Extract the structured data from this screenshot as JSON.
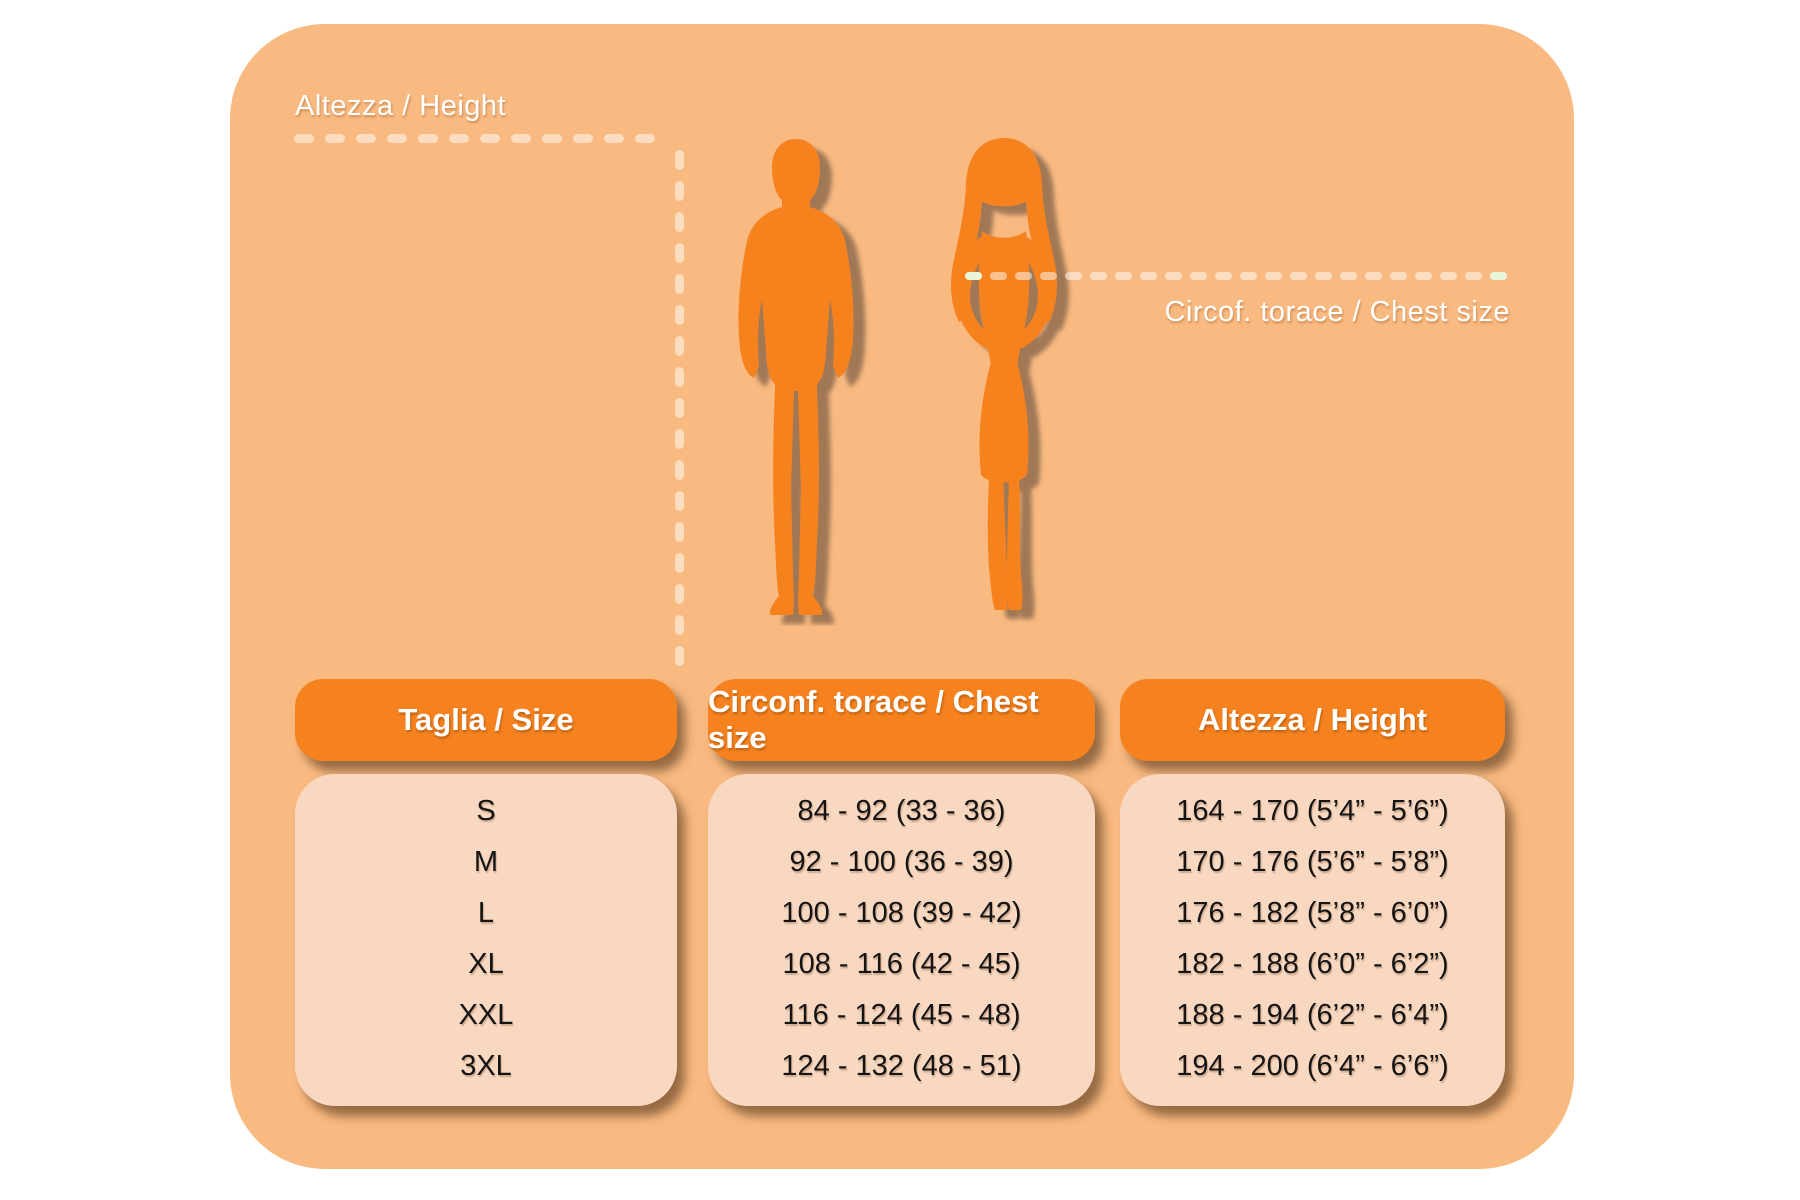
{
  "colors": {
    "card_bg": "#F9BA81",
    "accent_orange": "#F5821F",
    "panel_bg": "#F8D8C1",
    "dash": "rgba(255,255,255,0.5)",
    "dash_end_green": "#EAF6DB",
    "text_dark": "#141414",
    "text_white": "#FFFFFF"
  },
  "annotations": {
    "height_label": "Altezza / Height",
    "chest_label": "Circof. torace / Chest size"
  },
  "figures": {
    "man": "man-silhouette",
    "woman": "woman-silhouette"
  },
  "chart_data": {
    "type": "table",
    "columns": [
      "Taglia / Size",
      "Circonf. torace / Chest size",
      "Altezza / Height"
    ],
    "rows": [
      {
        "size": "S",
        "chest": "84 - 92 (33 - 36)",
        "height": "164 - 170 (5’4” - 5’6”)"
      },
      {
        "size": "M",
        "chest": "92 - 100 (36 - 39)",
        "height": "170 - 176 (5’6” - 5’8”)"
      },
      {
        "size": "L",
        "chest": "100 - 108 (39 - 42)",
        "height": "176 - 182 (5’8” - 6’0”)"
      },
      {
        "size": "XL",
        "chest": "108 - 116 (42 - 45)",
        "height": "182 - 188 (6’0” - 6’2”)"
      },
      {
        "size": "XXL",
        "chest": "116 - 124 (45 - 48)",
        "height": "188 - 194 (6’2” - 6’4”)"
      },
      {
        "size": "3XL",
        "chest": "124 - 132 (48 - 51)",
        "height": "194 - 200 (6’4” - 6’6”)"
      }
    ]
  }
}
